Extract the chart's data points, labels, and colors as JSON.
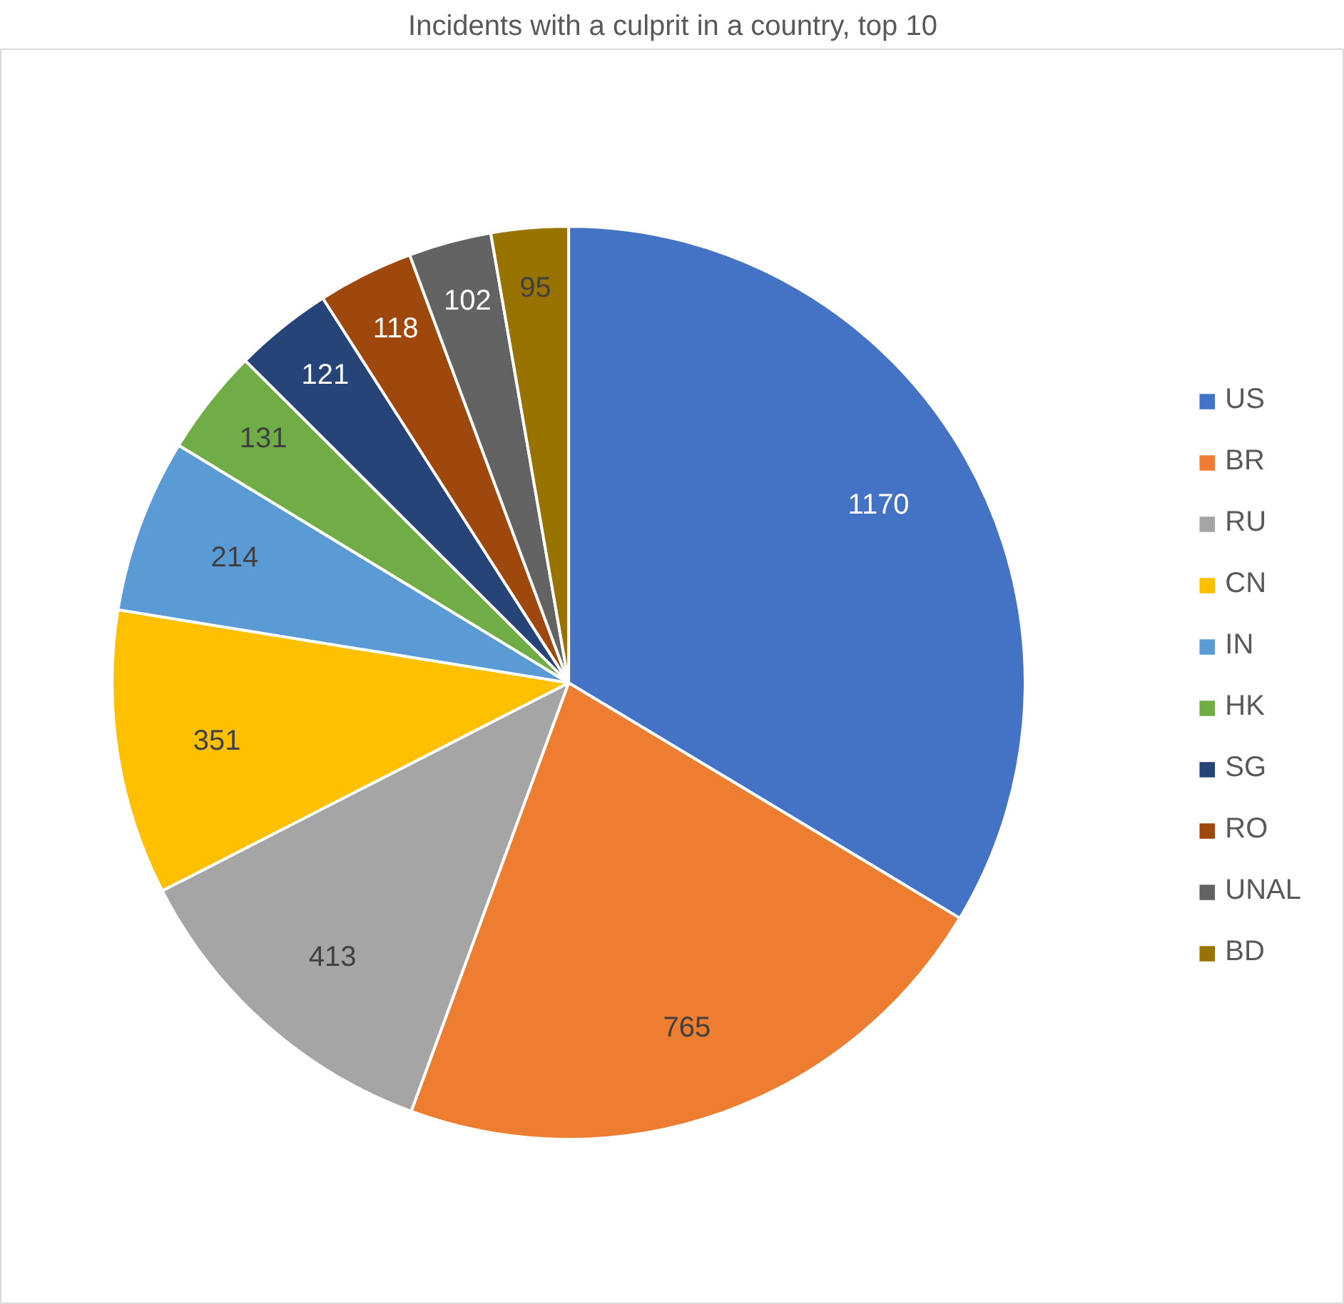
{
  "chart_data": {
    "type": "pie",
    "title": "Incidents with a culprit in a country, top 10",
    "categories": [
      "US",
      "BR",
      "RU",
      "CN",
      "IN",
      "HK",
      "SG",
      "RO",
      "UNAL",
      "BD"
    ],
    "values": [
      1170,
      765,
      413,
      351,
      214,
      131,
      121,
      118,
      102,
      95
    ],
    "colors": [
      "#4472c4",
      "#ed7d31",
      "#a5a5a5",
      "#ffc000",
      "#5b9bd5",
      "#70ad47",
      "#264478",
      "#9e480e",
      "#636363",
      "#997300"
    ],
    "data_labels": true,
    "legend": "right"
  }
}
